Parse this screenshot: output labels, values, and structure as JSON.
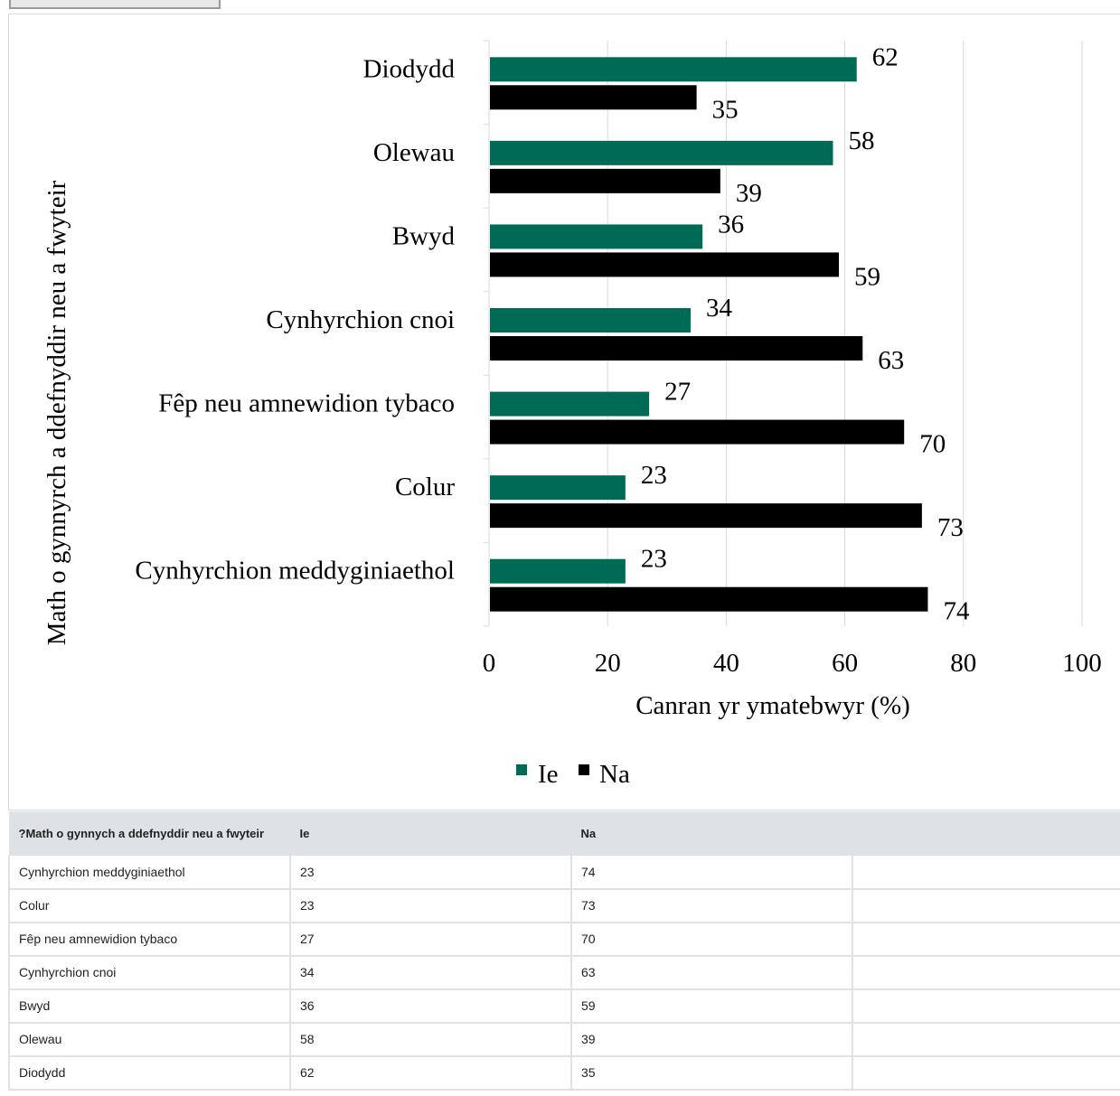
{
  "chart_data": {
    "type": "bar",
    "orientation": "horizontal",
    "categories": [
      "Diodydd",
      "Olewau",
      "Bwyd",
      "Cynhyrchion cnoi",
      "Fêp neu amnewidion tybaco",
      "Colur",
      "Cynhyrchion meddyginiaethol"
    ],
    "series": [
      {
        "name": "Ie",
        "values": [
          62,
          58,
          36,
          34,
          27,
          23,
          23
        ],
        "color": "#006b54"
      },
      {
        "name": "Na",
        "values": [
          35,
          39,
          59,
          63,
          70,
          73,
          74
        ],
        "color": "#000000"
      }
    ],
    "xlabel": "Canran yr ymatebwyr (%)",
    "ylabel": "Math o gynnyrch a ddefnyddir neu a fwyteir",
    "xlim": [
      0,
      100
    ],
    "xticks": [
      "0",
      "20",
      "40",
      "60",
      "80",
      "100"
    ],
    "grid": "vertical",
    "legend": "bottom"
  },
  "table": {
    "headers": [
      "?Math o gynnych a ddefnyddir neu a fwyteir",
      "Ie",
      "Na",
      ""
    ],
    "rows": [
      [
        "Cynhyrchion meddyginiaethol",
        "23",
        "74",
        ""
      ],
      [
        "Colur",
        "23",
        "73",
        ""
      ],
      [
        "Fêp neu amnewidion tybaco",
        "27",
        "70",
        ""
      ],
      [
        "Cynhyrchion cnoi",
        "34",
        "63",
        ""
      ],
      [
        "Bwyd",
        "36",
        "59",
        ""
      ],
      [
        "Olewau",
        "58",
        "39",
        ""
      ],
      [
        "Diodydd",
        "62",
        "35",
        ""
      ]
    ]
  }
}
